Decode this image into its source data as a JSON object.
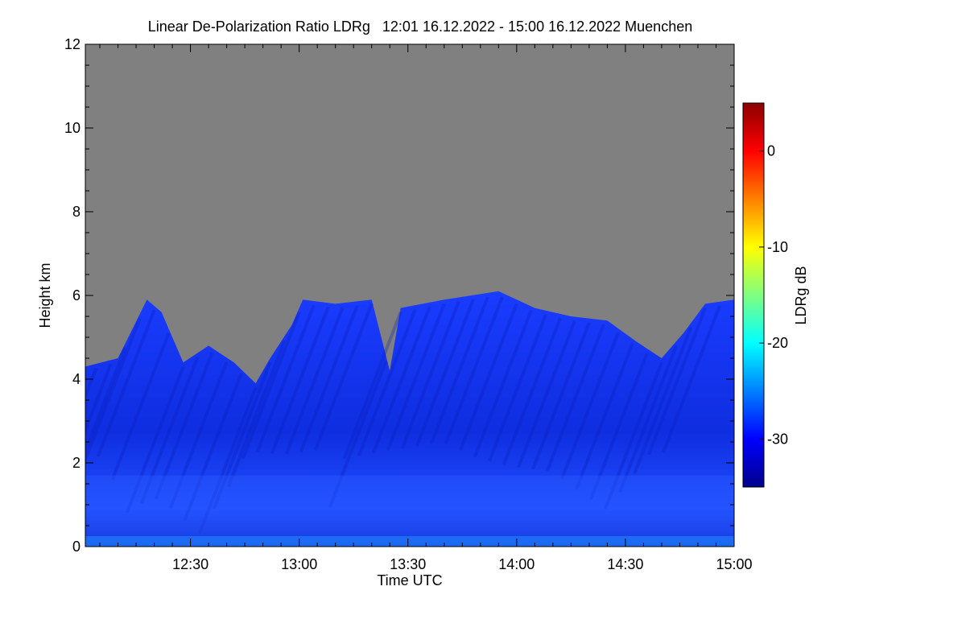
{
  "chart_data": {
    "type": "heatmap",
    "title": "Linear De-Polarization Ratio LDRg   12:01 16.12.2022 - 15:00 16.12.2022 Muenchen",
    "xlabel": "Time UTC",
    "ylabel": "Height km",
    "xlim": [
      "12:01",
      "15:00"
    ],
    "ylim": [
      0,
      12
    ],
    "x_ticks": [
      "12:30",
      "13:00",
      "13:30",
      "14:00",
      "14:30",
      "15:00"
    ],
    "y_ticks": [
      "0",
      "2",
      "4",
      "6",
      "8",
      "10",
      "12"
    ],
    "no_signal_color": "#808080",
    "colorbar": {
      "label": "LDRg dB",
      "range": [
        -35,
        5
      ],
      "ticks": [
        "0",
        "-10",
        "-20",
        "-30"
      ],
      "colormap": [
        "#00008b",
        "#0000ff",
        "#0080ff",
        "#00ffff",
        "#80ff80",
        "#ffff00",
        "#ff8000",
        "#ff0000",
        "#8b0000"
      ]
    },
    "cloud_top_km": [
      {
        "time": "12:01",
        "top": 4.3
      },
      {
        "time": "12:10",
        "top": 4.5
      },
      {
        "time": "12:18",
        "top": 5.9
      },
      {
        "time": "12:22",
        "top": 5.6
      },
      {
        "time": "12:28",
        "top": 4.4
      },
      {
        "time": "12:35",
        "top": 4.8
      },
      {
        "time": "12:42",
        "top": 4.4
      },
      {
        "time": "12:48",
        "top": 3.9
      },
      {
        "time": "12:52",
        "top": 4.5
      },
      {
        "time": "12:58",
        "top": 5.3
      },
      {
        "time": "13:01",
        "top": 5.9
      },
      {
        "time": "13:10",
        "top": 5.8
      },
      {
        "time": "13:20",
        "top": 5.9
      },
      {
        "time": "13:25",
        "top": 4.2
      },
      {
        "time": "13:28",
        "top": 5.7
      },
      {
        "time": "13:40",
        "top": 5.9
      },
      {
        "time": "13:55",
        "top": 6.1
      },
      {
        "time": "14:05",
        "top": 5.7
      },
      {
        "time": "14:15",
        "top": 5.5
      },
      {
        "time": "14:25",
        "top": 5.4
      },
      {
        "time": "14:33",
        "top": 4.9
      },
      {
        "time": "14:40",
        "top": 4.5
      },
      {
        "time": "14:46",
        "top": 5.1
      },
      {
        "time": "14:52",
        "top": 5.8
      },
      {
        "time": "15:00",
        "top": 5.9
      }
    ],
    "ldr_typical_db": -30
  }
}
